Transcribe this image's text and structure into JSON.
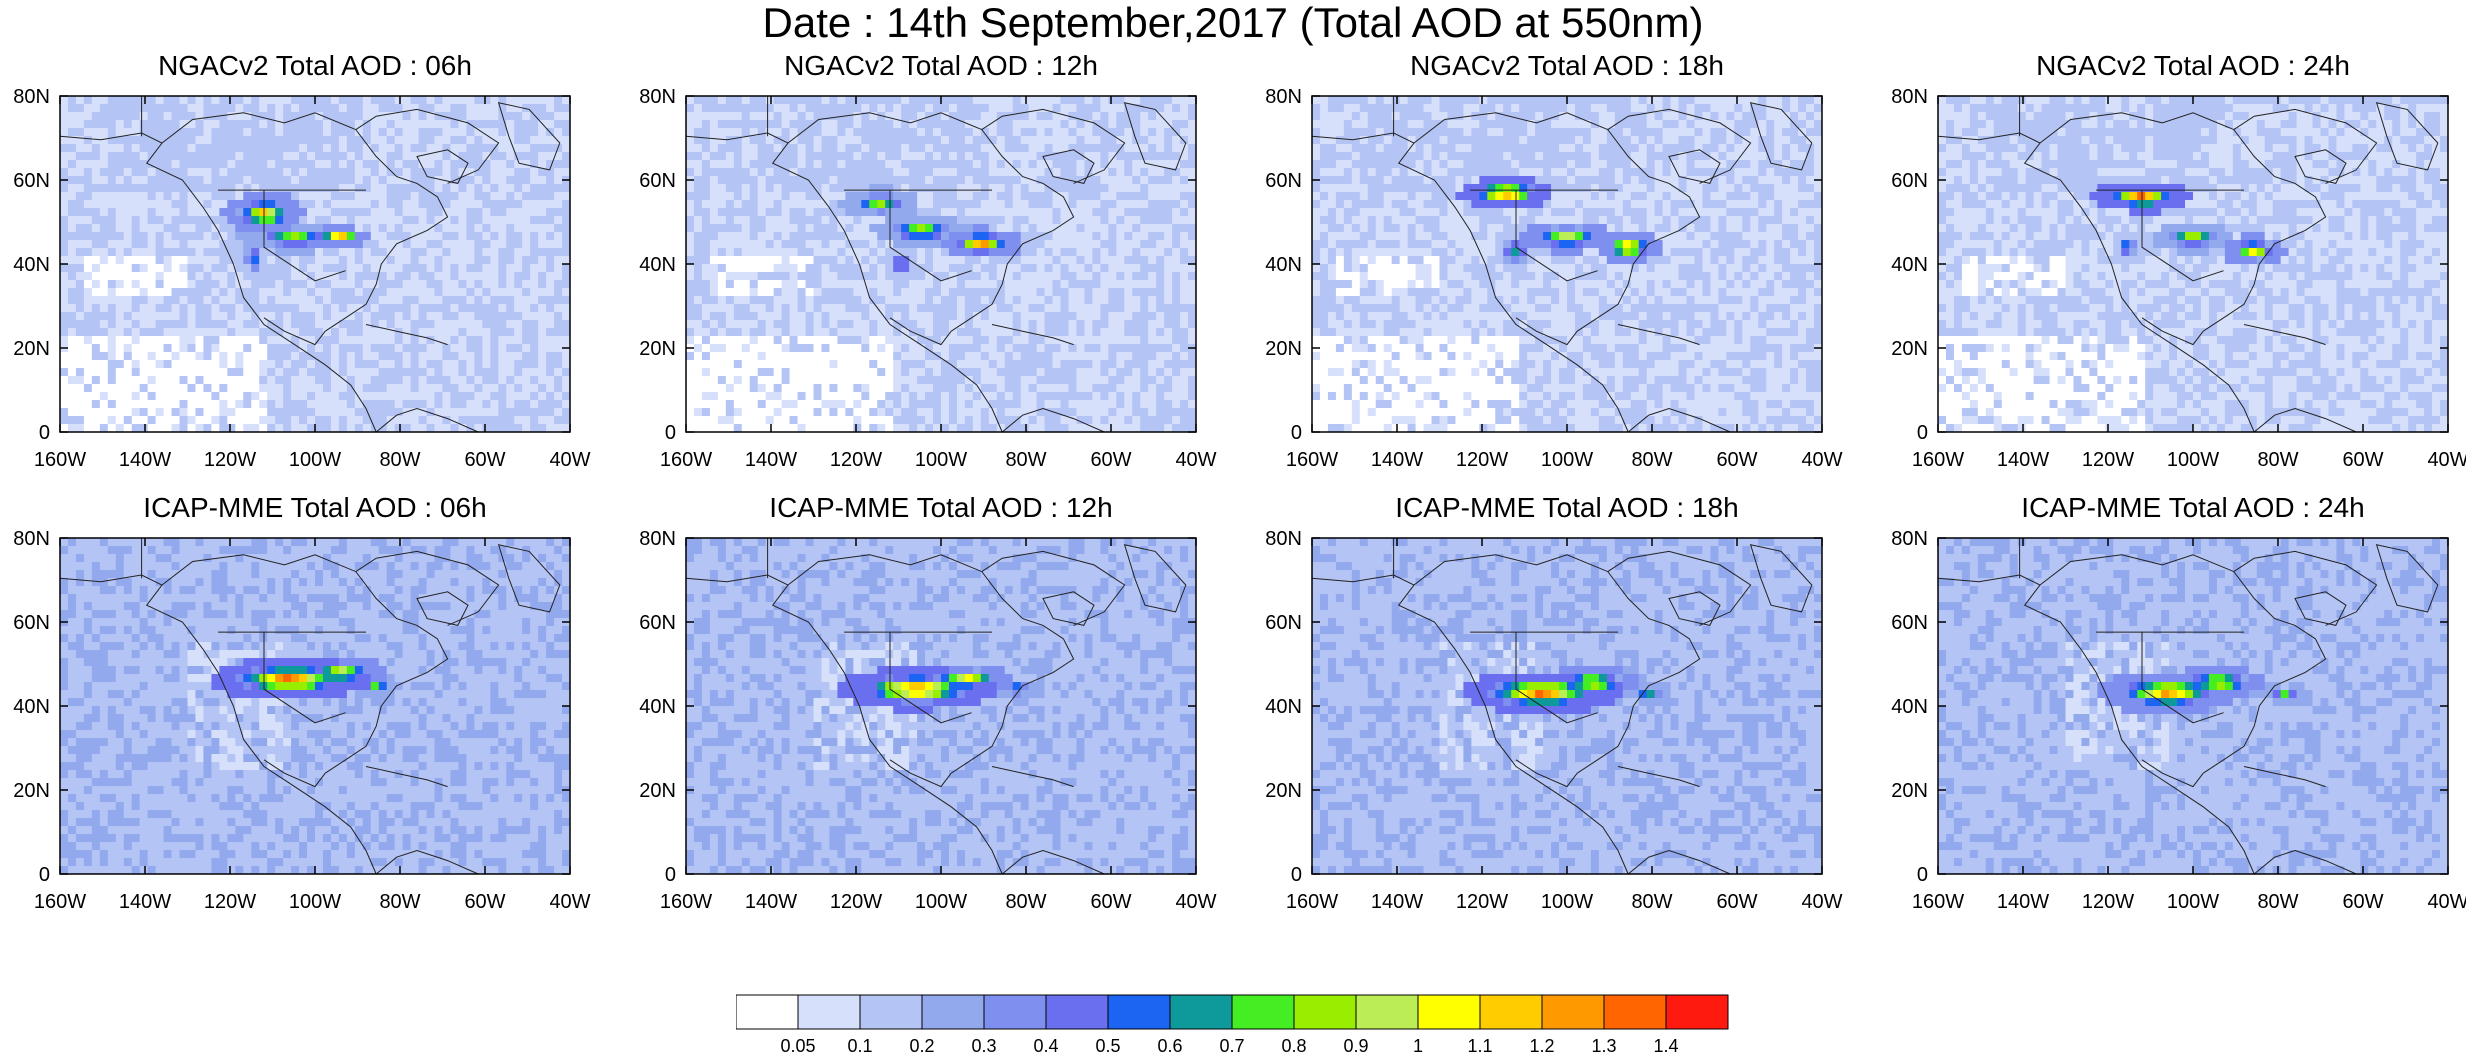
{
  "title": "Date : 14th September,2017 (Total AOD at 550nm)",
  "lat_labels": [
    "80N",
    "60N",
    "40N",
    "20N",
    "0"
  ],
  "lon_labels": [
    "160W",
    "140W",
    "120W",
    "100W",
    "80W",
    "60W",
    "40W"
  ],
  "panels": [
    {
      "title": "NGACv2 Total AOD : 06h",
      "model": "NGACv2",
      "hour": "06h"
    },
    {
      "title": "NGACv2 Total AOD : 12h",
      "model": "NGACv2",
      "hour": "12h"
    },
    {
      "title": "NGACv2 Total AOD : 18h",
      "model": "NGACv2",
      "hour": "18h"
    },
    {
      "title": "NGACv2 Total AOD : 24h",
      "model": "NGACv2",
      "hour": "24h"
    },
    {
      "title": "ICAP-MME Total AOD : 06h",
      "model": "ICAP-MME",
      "hour": "06h"
    },
    {
      "title": "ICAP-MME Total AOD : 12h",
      "model": "ICAP-MME",
      "hour": "12h"
    },
    {
      "title": "ICAP-MME Total AOD : 18h",
      "model": "ICAP-MME",
      "hour": "18h"
    },
    {
      "title": "ICAP-MME Total AOD : 24h",
      "model": "ICAP-MME",
      "hour": "24h"
    }
  ],
  "colorbar": {
    "labels": [
      "0.05",
      "0.1",
      "0.2",
      "0.3",
      "0.4",
      "0.5",
      "0.6",
      "0.7",
      "0.8",
      "0.9",
      "1",
      "1.1",
      "1.2",
      "1.3",
      "1.4"
    ],
    "colors": [
      "#ffffff",
      "#d6e0fb",
      "#b4c4f4",
      "#93a9ee",
      "#7e8ff0",
      "#6a6ff0",
      "#1c64f2",
      "#0e9a9a",
      "#44ee22",
      "#99ee00",
      "#bbee55",
      "#ffff00",
      "#ffcc00",
      "#ff9900",
      "#ff6600",
      "#ff1a10"
    ]
  }
}
